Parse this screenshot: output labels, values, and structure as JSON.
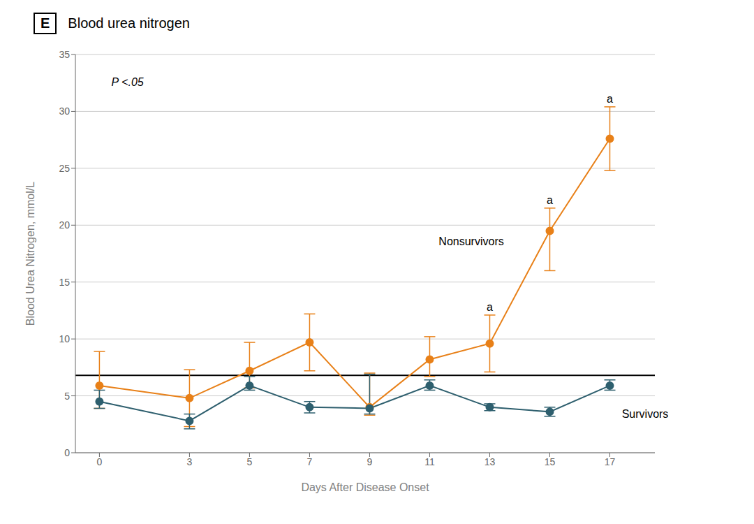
{
  "chart_data": {
    "type": "line",
    "panel_label": "E",
    "title": "Blood urea nitrogen",
    "x_label": "Days After Disease Onset",
    "y_label": "Blood Urea Nitrogen, mmol/L",
    "x": [
      0,
      3,
      5,
      7,
      9,
      11,
      13,
      15,
      17
    ],
    "series": [
      {
        "name": "Nonsurvivors",
        "color": "#E88018",
        "marker": "circle",
        "values": [
          5.9,
          4.8,
          7.2,
          9.7,
          4.0,
          8.2,
          9.6,
          19.5,
          27.6
        ],
        "error_upper": [
          3.0,
          2.5,
          2.5,
          2.5,
          3.0,
          2.0,
          2.5,
          2.0,
          2.8
        ],
        "error_lower": [
          2.0,
          2.5,
          1.5,
          2.5,
          0.7,
          1.5,
          2.5,
          3.5,
          2.8
        ],
        "label_x": 11.3,
        "label_y": 18.5
      },
      {
        "name": "Survivors",
        "color": "#2E5F6E",
        "marker": "circle",
        "values": [
          4.5,
          2.8,
          5.9,
          4.0,
          3.9,
          5.9,
          4.0,
          3.6,
          5.9
        ],
        "error_upper": [
          1.0,
          0.6,
          0.8,
          0.5,
          3.0,
          0.5,
          0.3,
          0.4,
          0.5
        ],
        "error_lower": [
          0.6,
          0.7,
          0.4,
          0.5,
          0.5,
          0.4,
          0.3,
          0.4,
          0.4
        ],
        "label_x": 17.4,
        "label_y": 3.3
      }
    ],
    "reference_line": {
      "y": 6.8,
      "color": "#000000"
    },
    "annotations": [
      {
        "text": "P <.05",
        "x": 0.4,
        "y": 32.5
      },
      {
        "text": "a",
        "x": 13,
        "series": "Nonsurvivors"
      },
      {
        "text": "a",
        "x": 15,
        "series": "Nonsurvivors"
      },
      {
        "text": "a",
        "x": 17,
        "series": "Nonsurvivors"
      }
    ],
    "xlim": [
      -0.8,
      18.5
    ],
    "xticks": [
      0,
      3,
      5,
      7,
      9,
      11,
      13,
      15,
      17
    ],
    "ylim": [
      0,
      35
    ],
    "yticks": [
      0,
      5,
      10,
      15,
      20,
      25,
      30,
      35
    ],
    "grid": "y"
  }
}
